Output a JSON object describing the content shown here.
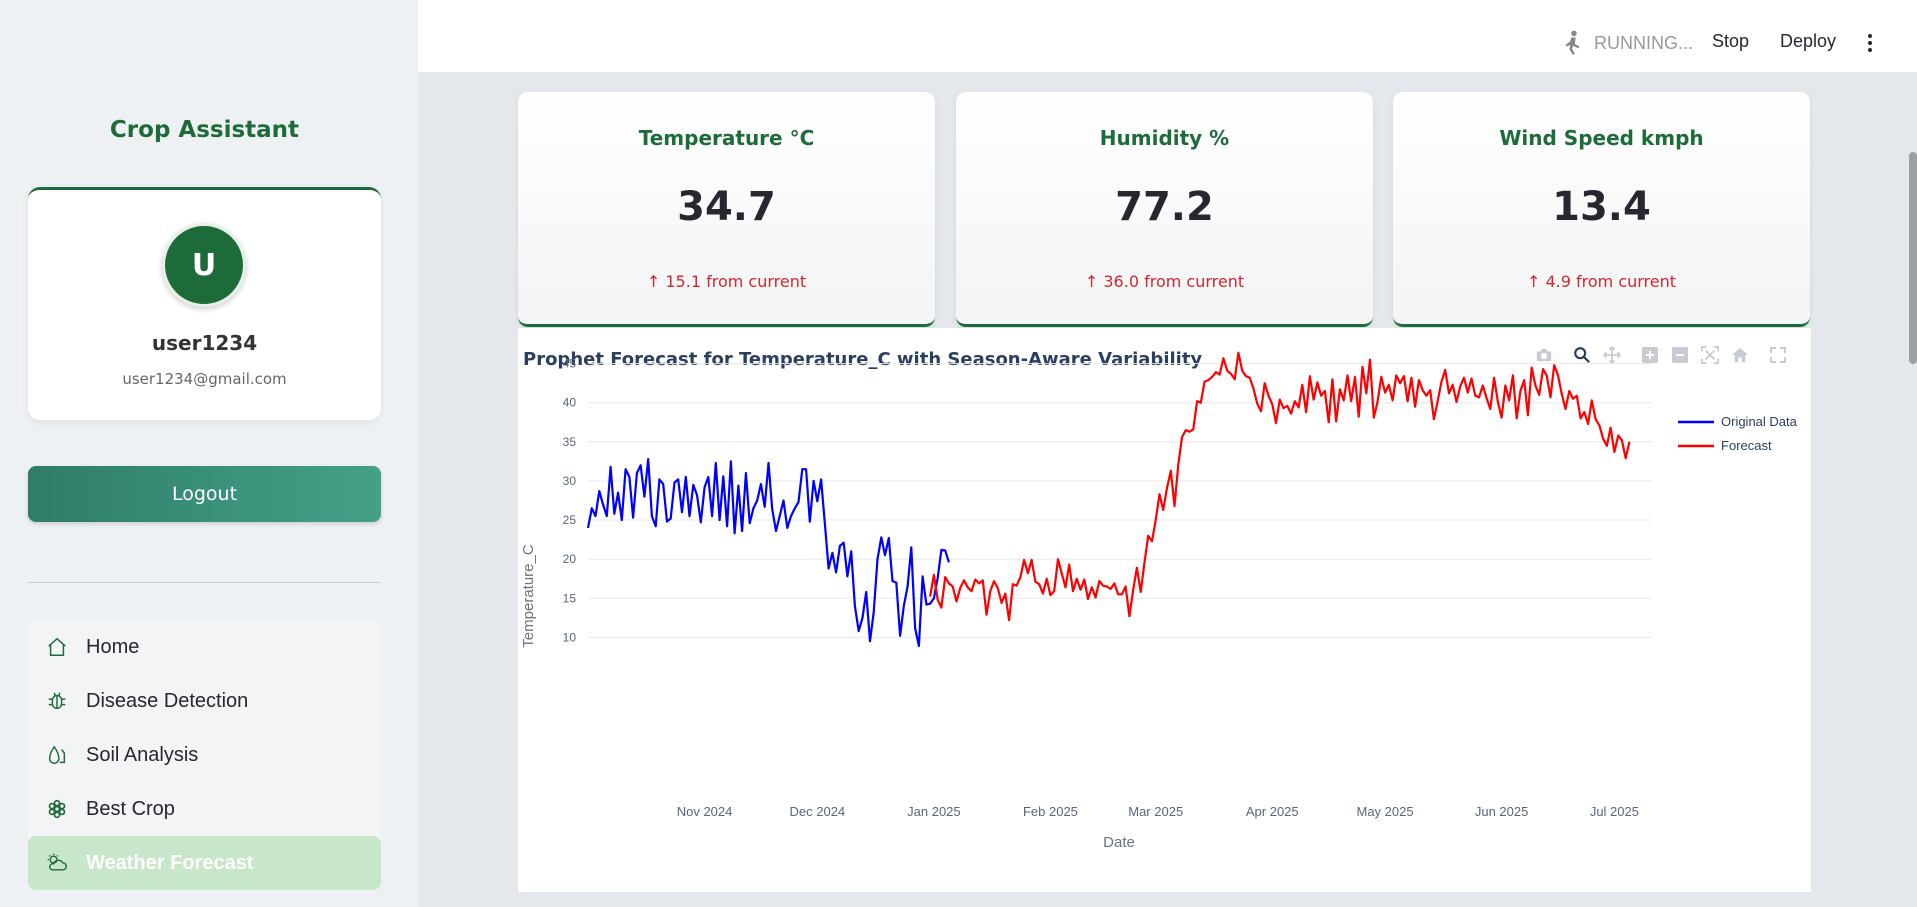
{
  "sidebar": {
    "title": "Crop Assistant",
    "user": {
      "avatar_letter": "U",
      "name": "user1234",
      "email": "user1234@gmail.com"
    },
    "logout_label": "Logout",
    "nav": [
      {
        "label": "Home",
        "icon": "home-icon"
      },
      {
        "label": "Disease Detection",
        "icon": "bug-icon"
      },
      {
        "label": "Soil Analysis",
        "icon": "soil-drop-icon"
      },
      {
        "label": "Best Crop",
        "icon": "plant-icon"
      },
      {
        "label": "Weather Forecast",
        "icon": "cloud-sun-icon",
        "active": true
      }
    ]
  },
  "header": {
    "status": "RUNNING...",
    "stop_label": "Stop",
    "deploy_label": "Deploy"
  },
  "metrics": [
    {
      "title": "Temperature °C",
      "value": "34.7",
      "delta": "↑ 15.1 from current"
    },
    {
      "title": "Humidity %",
      "value": "77.2",
      "delta": "↑ 36.0 from current"
    },
    {
      "title": "Wind Speed kmph",
      "value": "13.4",
      "delta": "↑ 4.9 from current"
    }
  ],
  "colors": {
    "accent": "#1e6b3a",
    "delta_up": "#d0282e",
    "original_series": "#0000ff",
    "forecast_series": "#ff0000",
    "active_nav": "#c8e6c9"
  },
  "chart_data": {
    "type": "line",
    "title": "Prophet Forecast for Temperature_C with Season-Aware Variability",
    "xlabel": "Date",
    "ylabel": "Temperature_C",
    "x_range": [
      "2024-10-01",
      "2025-07-11"
    ],
    "ylim": [
      8,
      47
    ],
    "yticks": [
      10,
      15,
      20,
      25,
      30,
      35,
      40,
      45
    ],
    "xticks": [
      {
        "date": "2024-11-01",
        "label": "Nov 2024"
      },
      {
        "date": "2024-12-01",
        "label": "Dec 2024"
      },
      {
        "date": "2025-01-01",
        "label": "Jan 2025"
      },
      {
        "date": "2025-02-01",
        "label": "Feb 2025"
      },
      {
        "date": "2025-03-01",
        "label": "Mar 2025"
      },
      {
        "date": "2025-04-01",
        "label": "Apr 2025"
      },
      {
        "date": "2025-05-01",
        "label": "May 2025"
      },
      {
        "date": "2025-06-01",
        "label": "Jun 2025"
      },
      {
        "date": "2025-07-01",
        "label": "Jul 2025"
      }
    ],
    "grid": true,
    "legend_position": "top-right",
    "series": [
      {
        "name": "Original Data",
        "color": "#0000ff",
        "start": "2024-10-01",
        "values": [
          24,
          26.5,
          25.5,
          28.7,
          27,
          25.5,
          31.8,
          25.8,
          28.5,
          25,
          31.5,
          30.5,
          25.3,
          31,
          32,
          28,
          32.8,
          25.5,
          24.2,
          30.2,
          29.6,
          24.8,
          25.2,
          29.8,
          30.2,
          26,
          30.5,
          25.5,
          29.5,
          28.2,
          24.7,
          29.2,
          30.5,
          25.5,
          32.3,
          25,
          30.6,
          24.2,
          32.5,
          23.3,
          29.4,
          23.6,
          31,
          24.6,
          26.5,
          27.5,
          29.6,
          26.7,
          32.3,
          26.4,
          23.6,
          25.5,
          27.5,
          24,
          25.5,
          26.5,
          27.3,
          31.5,
          31.5,
          24.8,
          30,
          27.4,
          30.2,
          24.5,
          18.8,
          20.8,
          18.3,
          21.7,
          22.1,
          17.8,
          21,
          14,
          10.8,
          12.5,
          15.8,
          9.5,
          13.2,
          20,
          22.8,
          20.5,
          22.7,
          17.2,
          17,
          10.2,
          14,
          16.5,
          21.5,
          11.2,
          8.9,
          17.8,
          14.2,
          14.3,
          15,
          17.6,
          21.2,
          21.1,
          19.6
        ]
      },
      {
        "name": "Forecast",
        "color": "#ff0000",
        "start": "2024-12-31",
        "values": [
          15.2,
          18,
          14.8,
          13.8,
          17.7,
          16.9,
          16.5,
          14.6,
          16.3,
          17.3,
          16.4,
          15.9,
          17.4,
          16.9,
          17.3,
          12.9,
          15.9,
          17.2,
          16.3,
          14.4,
          15.6,
          12.2,
          16.8,
          16.6,
          17.7,
          19.9,
          18.2,
          19.9,
          17.1,
          16.8,
          15.6,
          17.5,
          15.4,
          15.9,
          20,
          18.2,
          16.4,
          19.3,
          15.9,
          17.5,
          16.1,
          17.4,
          14.9,
          16.4,
          15.1,
          17.2,
          16.6,
          16.5,
          16.2,
          16.9,
          15.5,
          15.5,
          16.5,
          12.7,
          16.1,
          18.9,
          15.8,
          19.5,
          23,
          22.3,
          25,
          28.3,
          26.3,
          29.1,
          31.3,
          26.8,
          32.1,
          35.6,
          36.5,
          36.3,
          36.6,
          40.2,
          40,
          42.7,
          42.9,
          43.3,
          43.9,
          43.6,
          45.7,
          44.1,
          43.7,
          43,
          46.4,
          44.1,
          43.4,
          43.2,
          41.8,
          39.9,
          38.9,
          42.5,
          40.9,
          39.8,
          37.4,
          40.4,
          39.3,
          39.6,
          38.6,
          40.2,
          39.4,
          42.3,
          38.8,
          43.4,
          40.4,
          42.6,
          40.9,
          41.5,
          37.5,
          43,
          37.6,
          41.7,
          40.3,
          43.5,
          40.2,
          43.3,
          38.2,
          44.6,
          41.2,
          45.5,
          38.1,
          40.1,
          43.3,
          41.3,
          42.3,
          40.3,
          43.5,
          42.5,
          43.4,
          40.2,
          43.2,
          39.5,
          42.9,
          41.6,
          40.9,
          41.6,
          37.9,
          40.2,
          42.7,
          44.2,
          41.2,
          42.3,
          40.1,
          42.1,
          43.2,
          41.3,
          43.1,
          40.9,
          40.7,
          42.2,
          40.6,
          39.2,
          43.2,
          40.1,
          38.1,
          42.2,
          40.3,
          43.5,
          38,
          41.5,
          42.9,
          38.4,
          44.5,
          42.2,
          41,
          44.3,
          43.5,
          40.7,
          44.8,
          43.5,
          41.1,
          39.2,
          41.5,
          40.5,
          40.9,
          38,
          38.8,
          37.3,
          40.3,
          37.9,
          37.1,
          35.4,
          34.5,
          36.8,
          33.7,
          35.8,
          35.2,
          32.9,
          35
        ]
      }
    ]
  }
}
